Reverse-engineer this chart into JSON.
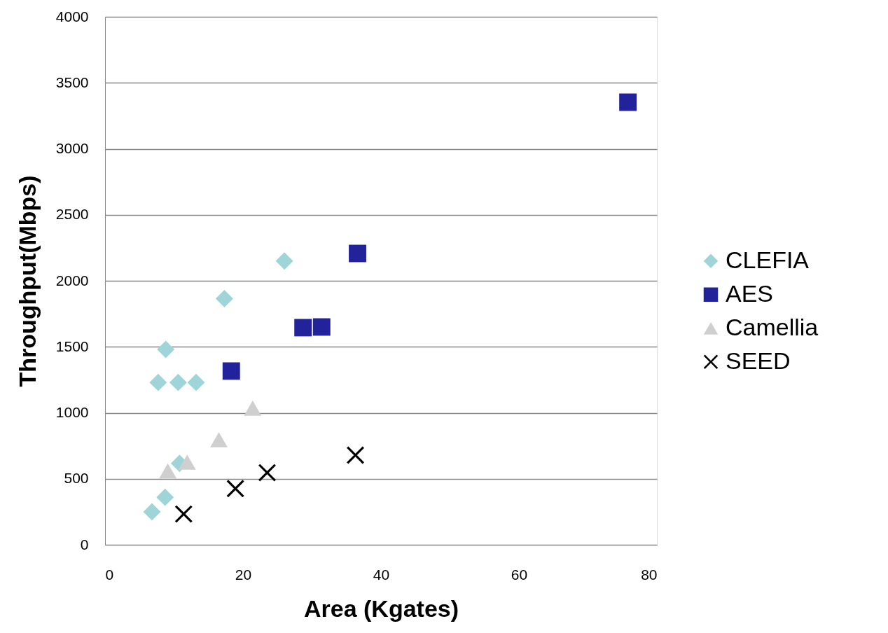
{
  "chart_data": {
    "type": "scatter",
    "xlabel": "Area (Kgates)",
    "ylabel": "Throughput(Mbps)",
    "xlim": [
      0,
      80
    ],
    "xticks": [
      0,
      20,
      40,
      60,
      80
    ],
    "ylim": [
      0,
      4000
    ],
    "yticks": [
      0,
      500,
      1000,
      1500,
      2000,
      2500,
      3000,
      3500,
      4000
    ],
    "grid": "y",
    "legend": "right",
    "series": [
      {
        "name": "CLEFIA",
        "color": "#9fd4d8",
        "marker": "diamond",
        "x": [
          6.8,
          8.7,
          8.8,
          7.7,
          10.6,
          13.2,
          17.3,
          26.0,
          10.8
        ],
        "values": [
          250,
          360,
          1480,
          1230,
          1230,
          1230,
          1865,
          2150,
          617
        ]
      },
      {
        "name": "AES",
        "color": "#22229a",
        "marker": "square",
        "x": [
          18.3,
          28.7,
          31.4,
          36.6,
          75.8
        ],
        "values": [
          1316,
          1645,
          1650,
          2207,
          3353
        ]
      },
      {
        "name": "Camellia",
        "color": "#cfcfcf",
        "marker": "triangle",
        "x": [
          9.1,
          11.9,
          16.5,
          21.4
        ],
        "values": [
          560,
          626,
          796,
          1035
        ]
      },
      {
        "name": "SEED",
        "color": "#000000",
        "marker": "cross",
        "x": [
          11.4,
          18.9,
          23.5,
          36.3
        ],
        "values": [
          233,
          426,
          546,
          679
        ]
      }
    ]
  }
}
